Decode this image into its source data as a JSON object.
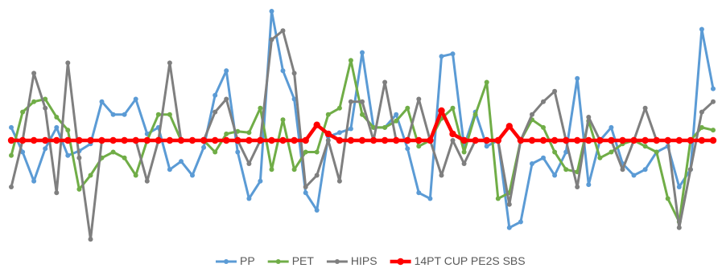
{
  "chart_data": {
    "type": "line",
    "title": "",
    "xlabel": "",
    "ylabel": "",
    "ylim": [
      -100,
      100
    ],
    "grid": false,
    "legend_position": "bottom",
    "series": [
      {
        "name": "PP",
        "color": "#5B9BD5",
        "values": [
          10,
          -10,
          -35,
          -7,
          10,
          -13,
          -9,
          -3,
          30,
          20,
          20,
          32,
          5,
          10,
          -25,
          -18,
          -30,
          -6,
          35,
          54,
          -10,
          -50,
          -35,
          100,
          54,
          32,
          -45,
          -60,
          3,
          6,
          9,
          68,
          10,
          10,
          20,
          -7,
          -45,
          -50,
          65,
          67,
          -5,
          22,
          -5,
          0,
          -75,
          -70,
          -20,
          -15,
          -30,
          -10,
          48,
          -38,
          0,
          10,
          -20,
          -30,
          -25,
          -10,
          -5,
          -40,
          -25,
          86,
          40
        ]
      },
      {
        "name": "PET",
        "color": "#70AD47",
        "values": [
          -13,
          22,
          30,
          32,
          18,
          8,
          -42,
          -30,
          -15,
          -10,
          -15,
          -30,
          0,
          20,
          20,
          0,
          0,
          0,
          -10,
          5,
          7,
          6,
          25,
          -25,
          16,
          -25,
          -10,
          -10,
          20,
          25,
          62,
          20,
          10,
          10,
          15,
          25,
          -5,
          0,
          17,
          25,
          -10,
          20,
          45,
          -50,
          -45,
          0,
          16,
          10,
          -10,
          -25,
          -27,
          15,
          -15,
          -10,
          -3,
          0,
          -5,
          -10,
          -50,
          -70,
          0,
          10,
          8
        ]
      },
      {
        "name": "HIPS",
        "color": "#7F7F7F",
        "values": [
          -40,
          0,
          52,
          25,
          -45,
          60,
          -15,
          -85,
          0,
          0,
          0,
          0,
          -35,
          0,
          60,
          0,
          0,
          0,
          22,
          32,
          0,
          -20,
          0,
          78,
          85,
          52,
          -40,
          -30,
          0,
          -35,
          30,
          30,
          0,
          45,
          0,
          0,
          32,
          0,
          -30,
          0,
          -20,
          0,
          0,
          0,
          -55,
          0,
          20,
          30,
          38,
          0,
          -40,
          18,
          0,
          0,
          -25,
          0,
          25,
          0,
          0,
          -75,
          -25,
          22,
          30
        ]
      },
      {
        "name": "14PT CUP PE2S SBS",
        "color": "#FF0000",
        "values": [
          0,
          0,
          0,
          0,
          0,
          0,
          0,
          0,
          0,
          0,
          0,
          0,
          0,
          0,
          0,
          0,
          0,
          0,
          0,
          0,
          0,
          0,
          0,
          0,
          0,
          0,
          0,
          12,
          5,
          0,
          0,
          0,
          0,
          0,
          0,
          0,
          0,
          0,
          23,
          5,
          0,
          0,
          0,
          0,
          11,
          0,
          0,
          0,
          0,
          0,
          0,
          0,
          0,
          0,
          0,
          0,
          0,
          0,
          0,
          0,
          0,
          0,
          0
        ]
      }
    ]
  }
}
